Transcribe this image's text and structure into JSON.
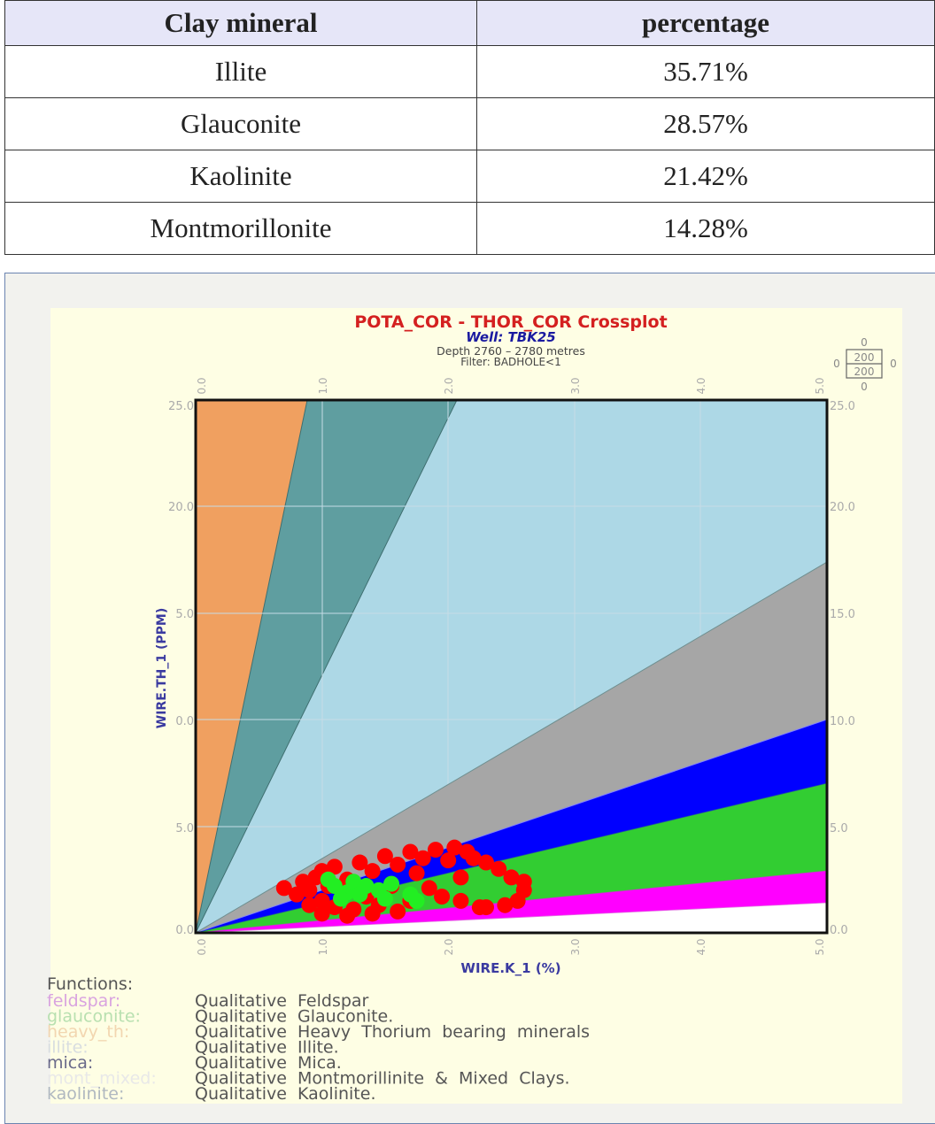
{
  "table": {
    "headers": [
      "Clay mineral",
      "percentage"
    ],
    "rows": [
      {
        "mineral": "Illite",
        "percentage": "35.71%"
      },
      {
        "mineral": "Glauconite",
        "percentage": "28.57%"
      },
      {
        "mineral": "Kaolinite",
        "percentage": "21.42%"
      },
      {
        "mineral": "Montmorillonite",
        "percentage": "14.28%"
      }
    ]
  },
  "crossplot": {
    "title": "POTA_COR - THOR_COR Crossplot",
    "well": "Well: TBK25",
    "depth": "Depth 2760  –  2780 metres",
    "filter": "Filter: BADHOLE<1",
    "xlabel": "WIRE.K_1 (%)",
    "ylabel": "WIRE.TH_1 (PPM)",
    "x_ticks": [
      "0.0",
      "1.0",
      "2.0",
      "3.0",
      "4.0",
      "5.0"
    ],
    "y_ticks": [
      "0.0",
      "5.0",
      "10.0",
      "15.0",
      "20.0",
      "25.0"
    ],
    "y_ticks_left_display": [
      "0.0",
      "5.0",
      "0.0",
      "5.0",
      "20.0",
      "25.0"
    ],
    "scale_box": {
      "top": "0",
      "left": "0",
      "right": "0",
      "bottom": "0",
      "upper": "200",
      "lower": "200"
    },
    "functions_header": "Functions:",
    "functions": [
      {
        "key": "feldspar:",
        "desc": "Qualitative  Feldspar",
        "color": "#d9a3e0"
      },
      {
        "key": "glauconite:",
        "desc": "Qualitative  Glauconite.",
        "color": "#b8e0b0"
      },
      {
        "key": "heavy_th:",
        "desc": "Qualitative  Heavy  Thorium  bearing  minerals",
        "color": "#f2d6b0"
      },
      {
        "key": "illite:",
        "desc": "Qualitative  Illite.",
        "color": "#d8dde0"
      },
      {
        "key": "mica:",
        "desc": "Qualitative  Mica.",
        "color": "#6a6a8a"
      },
      {
        "key": "mont_mixed:",
        "desc": "Qualitative  Montmorillinite  &  Mixed  Clays.",
        "color": "#e8e8e8"
      },
      {
        "key": "kaolinite:",
        "desc": "Qualitative  Kaolinite.",
        "color": "#b0b8c0"
      }
    ]
  },
  "chart_data": {
    "type": "scatter",
    "title": "POTA_COR - THOR_COR Crossplot",
    "subtitle": "Well: TBK25 | Depth 2760 - 2780 metres | Filter: BADHOLE<1",
    "xlabel": "WIRE.K_1 (%)",
    "ylabel": "WIRE.TH_1 (PPM)",
    "xlim": [
      0,
      5
    ],
    "ylim": [
      0,
      25
    ],
    "grid": true,
    "zones": [
      {
        "name": "heavy_th",
        "color": "#f0a060",
        "th_over_k_lower": 28.4,
        "th_over_k_upper": null
      },
      {
        "name": "kaolinite",
        "color": "#5f9ea0",
        "th_over_k_lower": 12.1,
        "th_over_k_upper": 28.4
      },
      {
        "name": "mont_mixed",
        "color": "#add8e6",
        "th_at_k5_lower": 17.4,
        "th_over_k_upper": 12.1
      },
      {
        "name": "illite",
        "color": "#a6a6a6",
        "th_at_k5_lower": 10.0,
        "th_at_k5_upper": 17.4
      },
      {
        "name": "mica",
        "color": "#0000ff",
        "th_at_k5_lower": 7.0,
        "th_at_k5_upper": 10.0
      },
      {
        "name": "glauconite",
        "color": "#32cd32",
        "th_at_k5_lower": 2.9,
        "th_at_k5_upper": 7.0
      },
      {
        "name": "feldspar",
        "color": "#ff00ff",
        "th_at_k5_lower": 1.4,
        "th_at_k5_upper": 2.9
      },
      {
        "name": "unclassified",
        "color": "#ffffff",
        "th_at_k5_lower": 0.0,
        "th_at_k5_upper": 1.4
      }
    ],
    "series": [
      {
        "name": "red points",
        "color": "#ff0000",
        "points": [
          [
            0.7,
            2.1
          ],
          [
            0.8,
            1.8
          ],
          [
            0.85,
            2.4
          ],
          [
            0.9,
            2.0
          ],
          [
            0.95,
            2.6
          ],
          [
            1.0,
            1.5
          ],
          [
            1.0,
            2.9
          ],
          [
            1.05,
            2.2
          ],
          [
            1.1,
            1.2
          ],
          [
            1.1,
            3.1
          ],
          [
            1.2,
            2.5
          ],
          [
            1.25,
            1.1
          ],
          [
            1.3,
            3.3
          ],
          [
            1.35,
            1.7
          ],
          [
            1.4,
            2.9
          ],
          [
            1.45,
            1.3
          ],
          [
            1.5,
            3.6
          ],
          [
            1.55,
            2.2
          ],
          [
            1.6,
            1.0
          ],
          [
            1.6,
            3.2
          ],
          [
            1.7,
            3.8
          ],
          [
            1.7,
            1.5
          ],
          [
            1.75,
            2.8
          ],
          [
            1.8,
            3.5
          ],
          [
            1.85,
            2.1
          ],
          [
            1.9,
            3.9
          ],
          [
            1.95,
            1.7
          ],
          [
            2.0,
            3.4
          ],
          [
            2.05,
            4.0
          ],
          [
            2.1,
            2.6
          ],
          [
            2.1,
            1.5
          ],
          [
            2.2,
            3.5
          ],
          [
            2.25,
            1.2
          ],
          [
            2.3,
            3.3
          ],
          [
            2.4,
            3.0
          ],
          [
            2.45,
            1.3
          ],
          [
            2.5,
            2.6
          ],
          [
            2.55,
            1.5
          ],
          [
            2.6,
            2.0
          ],
          [
            2.6,
            2.4
          ],
          [
            2.3,
            1.2
          ],
          [
            1.4,
            0.9
          ],
          [
            1.2,
            0.8
          ],
          [
            1.0,
            0.9
          ],
          [
            0.9,
            1.3
          ],
          [
            2.15,
            3.8
          ]
        ]
      },
      {
        "name": "green points",
        "color": "#22ee22",
        "points": [
          [
            1.05,
            2.5
          ],
          [
            1.1,
            2.2
          ],
          [
            1.2,
            1.9
          ],
          [
            1.25,
            2.4
          ],
          [
            1.3,
            1.8
          ],
          [
            1.35,
            2.2
          ],
          [
            1.45,
            2.0
          ],
          [
            1.5,
            1.6
          ],
          [
            1.55,
            2.3
          ],
          [
            1.7,
            1.8
          ],
          [
            1.75,
            1.5
          ],
          [
            1.15,
            1.6
          ]
        ]
      }
    ]
  }
}
